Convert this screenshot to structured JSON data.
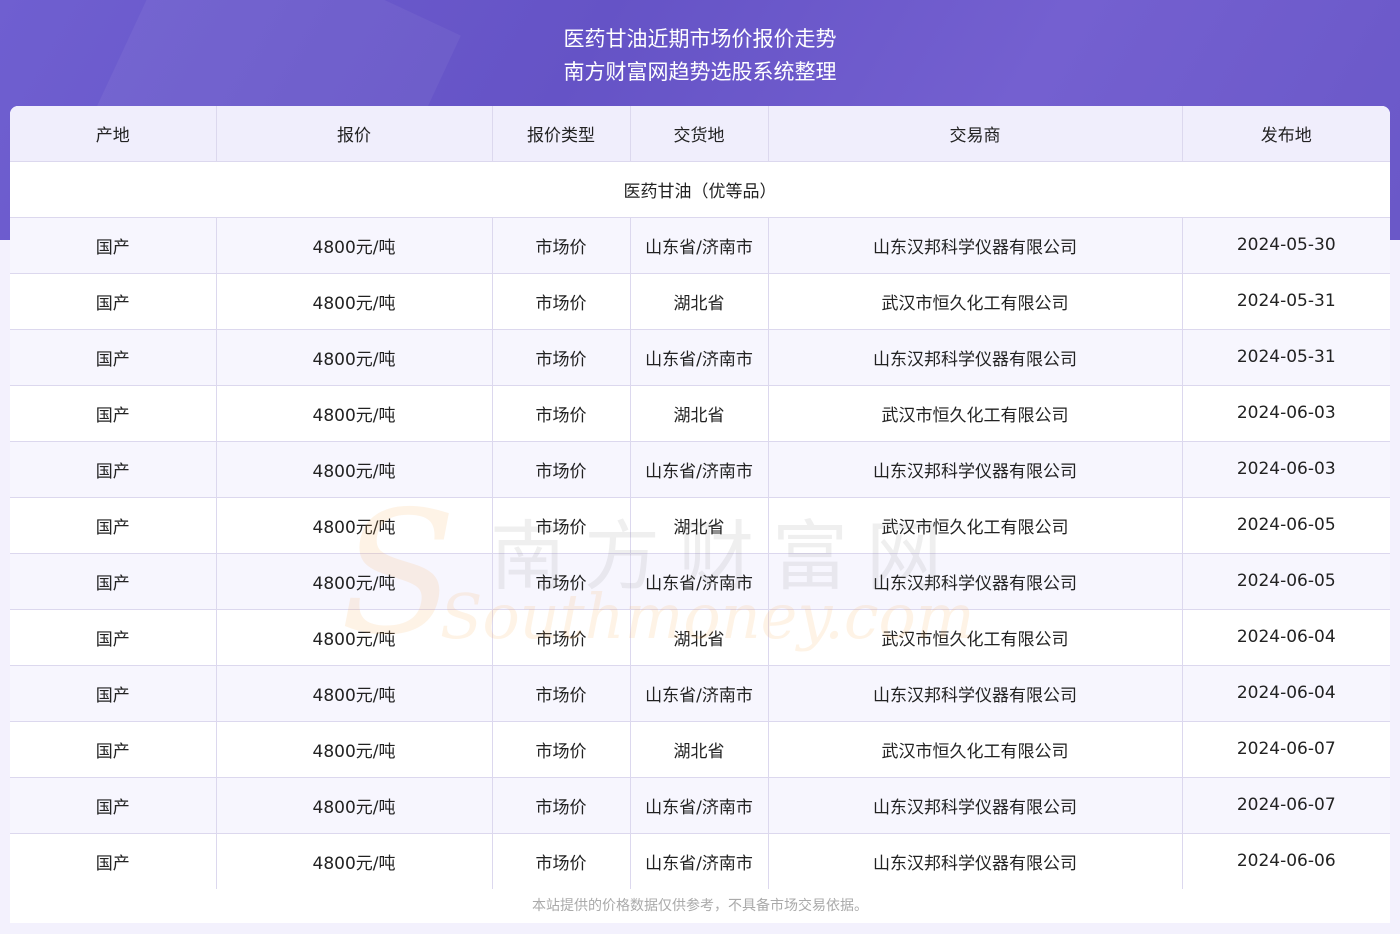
{
  "header": {
    "title": "医药甘油近期市场价报价走势",
    "subtitle": "南方财富网趋势选股系统整理"
  },
  "table": {
    "columns": [
      "产地",
      "报价",
      "报价类型",
      "交货地",
      "交易商",
      "发布地"
    ],
    "category": "医药甘油（优等品）",
    "rows": [
      [
        "国产",
        "4800元/吨",
        "市场价",
        "山东省/济南市",
        "山东汉邦科学仪器有限公司",
        "2024-05-30"
      ],
      [
        "国产",
        "4800元/吨",
        "市场价",
        "湖北省",
        "武汉市恒久化工有限公司",
        "2024-05-31"
      ],
      [
        "国产",
        "4800元/吨",
        "市场价",
        "山东省/济南市",
        "山东汉邦科学仪器有限公司",
        "2024-05-31"
      ],
      [
        "国产",
        "4800元/吨",
        "市场价",
        "湖北省",
        "武汉市恒久化工有限公司",
        "2024-06-03"
      ],
      [
        "国产",
        "4800元/吨",
        "市场价",
        "山东省/济南市",
        "山东汉邦科学仪器有限公司",
        "2024-06-03"
      ],
      [
        "国产",
        "4800元/吨",
        "市场价",
        "湖北省",
        "武汉市恒久化工有限公司",
        "2024-06-05"
      ],
      [
        "国产",
        "4800元/吨",
        "市场价",
        "山东省/济南市",
        "山东汉邦科学仪器有限公司",
        "2024-06-05"
      ],
      [
        "国产",
        "4800元/吨",
        "市场价",
        "湖北省",
        "武汉市恒久化工有限公司",
        "2024-06-04"
      ],
      [
        "国产",
        "4800元/吨",
        "市场价",
        "山东省/济南市",
        "山东汉邦科学仪器有限公司",
        "2024-06-04"
      ],
      [
        "国产",
        "4800元/吨",
        "市场价",
        "湖北省",
        "武汉市恒久化工有限公司",
        "2024-06-07"
      ],
      [
        "国产",
        "4800元/吨",
        "市场价",
        "山东省/济南市",
        "山东汉邦科学仪器有限公司",
        "2024-06-07"
      ],
      [
        "国产",
        "4800元/吨",
        "市场价",
        "山东省/济南市",
        "山东汉邦科学仪器有限公司",
        "2024-06-06"
      ]
    ]
  },
  "watermark": {
    "cn": "南方财富网",
    "en": "Southmoney.com"
  },
  "footer": "本站提供的价格数据仅供参考，不具备市场交易依据。"
}
